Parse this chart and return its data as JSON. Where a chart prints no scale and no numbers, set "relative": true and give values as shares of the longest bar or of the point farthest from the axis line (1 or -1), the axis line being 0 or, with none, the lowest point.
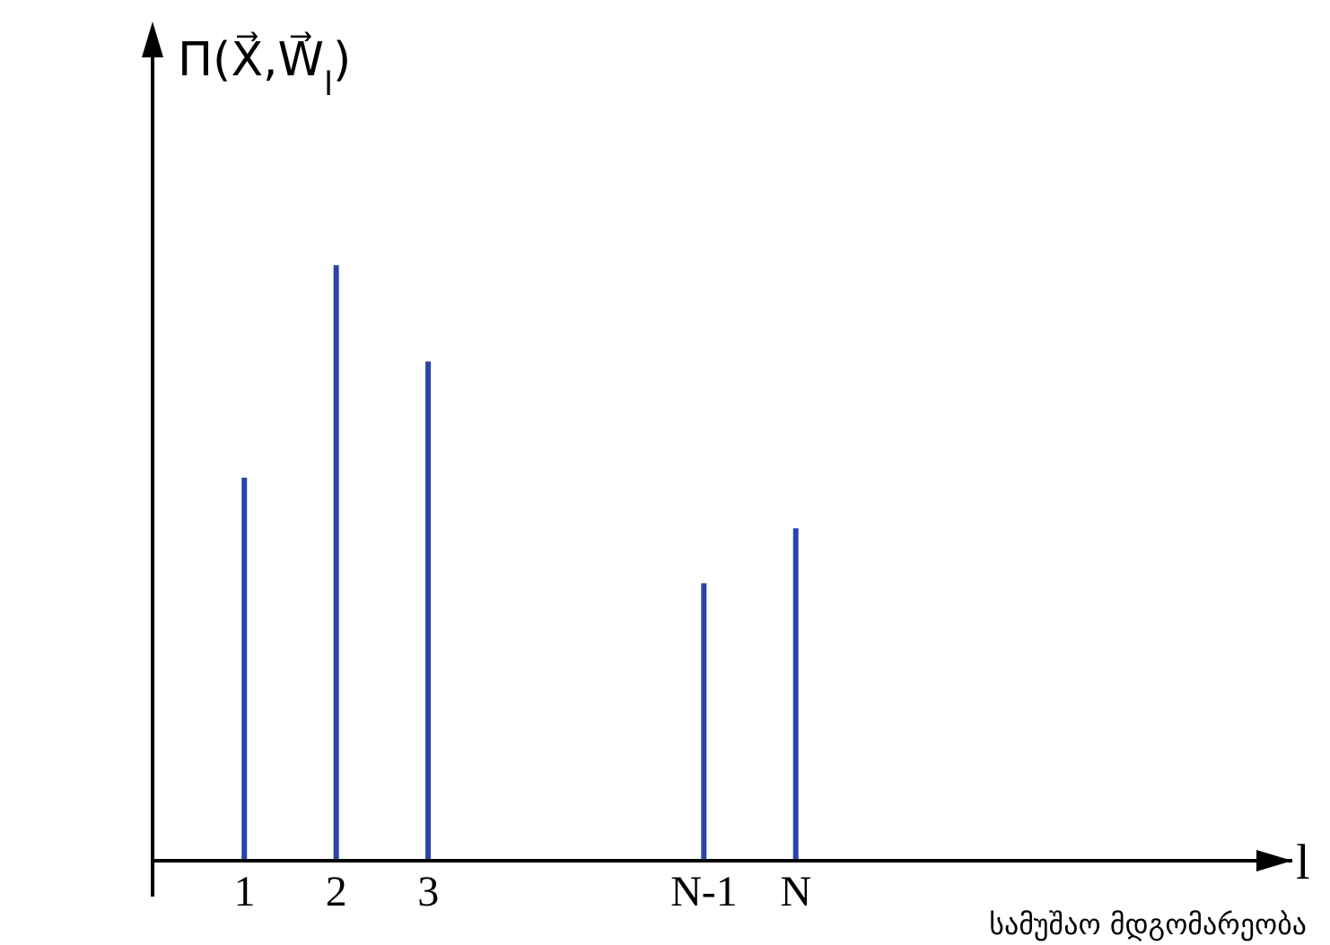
{
  "chart_data": {
    "type": "bar",
    "relative": true,
    "ylabel": "Π(X⃗,W⃗$_{l}$)",
    "annotations": [
      "l",
      "სამუშაო მდგომარეობა"
    ],
    "categories": [
      "1",
      "2",
      "3",
      null,
      null,
      "N-1",
      "N"
    ],
    "values": [
      0.643,
      1,
      0.838,
      null,
      null,
      0.466,
      0.558
    ],
    "color": "#2a44a8",
    "grid": false,
    "legend": false
  }
}
